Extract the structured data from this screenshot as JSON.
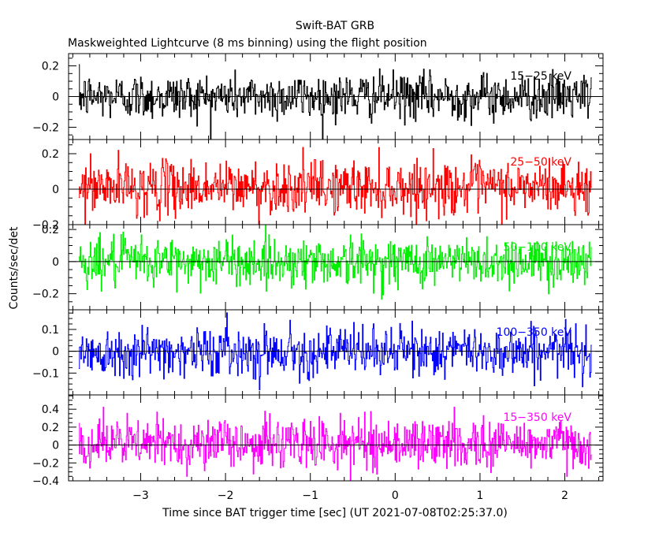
{
  "title": "Swift-BAT GRB",
  "subtitle": "Maskweighted Lightcurve (8 ms binning) using the flight position",
  "chart_data": {
    "type": "line",
    "xlabel": "Time since BAT trigger time [sec] (UT 2021-07-08T02:25:37.0)",
    "ylabel": "Counts/sec/det",
    "xlim": [
      -3.85,
      2.45
    ],
    "x_start": -3.73,
    "x_end": 2.32,
    "bin_width": 0.008,
    "x_ticks": [
      -3,
      -2,
      -1,
      0,
      1,
      2
    ],
    "x_tick_labels": [
      "−3",
      "−2",
      "−1",
      "0",
      "1",
      "2"
    ],
    "panels": [
      {
        "band": "15−25 keV",
        "color": "#000000",
        "ylim": [
          -0.28,
          0.28
        ],
        "y_ticks": [
          -0.2,
          0,
          0.2
        ],
        "y_tick_labels": [
          "−0.2",
          "0",
          "0.2"
        ],
        "noise_sigma": 0.075,
        "mean": 0.0
      },
      {
        "band": "25−50 keV",
        "color": "#ff0000",
        "ylim": [
          -0.2,
          0.28
        ],
        "y_ticks": [
          -0.2,
          0,
          0.2
        ],
        "y_tick_labels": [
          "−0.2",
          "0",
          "0.2"
        ],
        "noise_sigma": 0.075,
        "mean": 0.01
      },
      {
        "band": "50−100 keV",
        "color": "#00ee00",
        "ylim": [
          -0.3,
          0.23
        ],
        "y_ticks": [
          -0.2,
          0,
          0.2
        ],
        "y_tick_labels": [
          "−0.2",
          "0",
          "0.2"
        ],
        "noise_sigma": 0.075,
        "mean": 0.0
      },
      {
        "band": "100−350 keV",
        "color": "#0000ff",
        "ylim": [
          -0.2,
          0.19
        ],
        "y_ticks": [
          -0.1,
          0,
          0.1
        ],
        "y_tick_labels": [
          "−0.1",
          "0",
          "0.1"
        ],
        "noise_sigma": 0.055,
        "mean": 0.0
      },
      {
        "band": "15−350 keV",
        "color": "#ff00ff",
        "ylim": [
          -0.4,
          0.56
        ],
        "y_ticks": [
          -0.4,
          -0.2,
          0,
          0.2,
          0.4
        ],
        "y_tick_labels": [
          "−0.4",
          "−0.2",
          "0",
          "0.2",
          "0.4"
        ],
        "noise_sigma": 0.14,
        "mean": 0.02
      }
    ]
  }
}
